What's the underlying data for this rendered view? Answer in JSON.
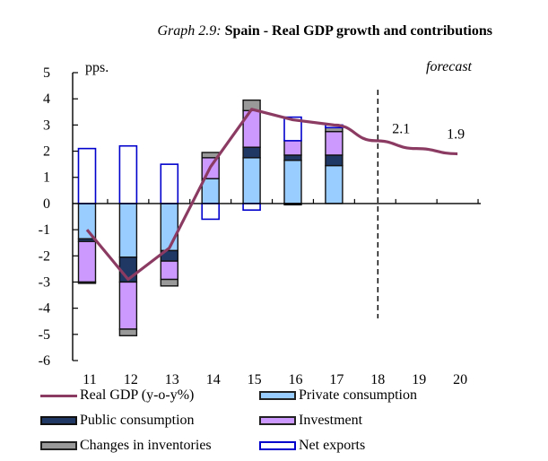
{
  "title": {
    "prefix": "Graph 2.9:",
    "main": "Spain - Real GDP growth and contributions"
  },
  "chart_data": {
    "type": "bar",
    "stacked": true,
    "title": "Graph 2.9: Spain - Real GDP growth and contributions",
    "ylabel": "pps.",
    "xlabel": "",
    "ylim": [
      -6,
      5
    ],
    "yticks": [
      5,
      4,
      3,
      2,
      1,
      0,
      -1,
      -2,
      -3,
      -4,
      -5,
      -6
    ],
    "categories": [
      "11",
      "12",
      "13",
      "14",
      "15",
      "16",
      "17",
      "18",
      "19",
      "20"
    ],
    "annotation_forecast": "forecast",
    "forecast_starts_after": "18",
    "series": [
      {
        "name": "Private consumption",
        "kind": "bar",
        "color": "#99ccff",
        "values": [
          -1.35,
          -2.05,
          -1.8,
          0.95,
          1.75,
          1.65,
          1.45,
          null,
          null,
          null
        ]
      },
      {
        "name": "Public consumption",
        "kind": "bar",
        "color": "#1f3864",
        "values": [
          -0.1,
          -0.95,
          -0.4,
          0.0,
          0.4,
          0.2,
          0.4,
          null,
          null,
          null
        ]
      },
      {
        "name": "Investment",
        "kind": "bar",
        "color": "#cc99ff",
        "values": [
          -1.55,
          -1.8,
          -0.7,
          0.8,
          1.4,
          0.55,
          0.9,
          null,
          null,
          null
        ]
      },
      {
        "name": "Changes in inventories",
        "kind": "bar",
        "color": "#999999",
        "values": [
          -0.05,
          -0.25,
          -0.25,
          0.2,
          0.4,
          -0.05,
          0.15,
          null,
          null,
          null
        ]
      },
      {
        "name": "Net exports",
        "kind": "bar",
        "color": "#ffffff",
        "border": "#0000cc",
        "values": [
          2.1,
          2.2,
          1.5,
          -0.6,
          -0.25,
          0.9,
          0.1,
          null,
          null,
          null
        ]
      },
      {
        "name": "Real GDP (y-o-y%)",
        "kind": "line",
        "color": "#8b3a62",
        "values": [
          -1.0,
          -2.9,
          -1.7,
          1.4,
          3.6,
          3.2,
          3.0,
          2.4,
          2.1,
          1.9
        ]
      }
    ],
    "data_labels": [
      {
        "category": "19",
        "text": "2.1"
      },
      {
        "category": "20",
        "text": "1.9"
      }
    ],
    "legend": {
      "placement": "bottom",
      "entries": [
        "Real GDP (y-o-y%)",
        "Private consumption",
        "Public consumption",
        "Investment",
        "Changes in inventories",
        "Net exports"
      ]
    },
    "grid": false
  }
}
